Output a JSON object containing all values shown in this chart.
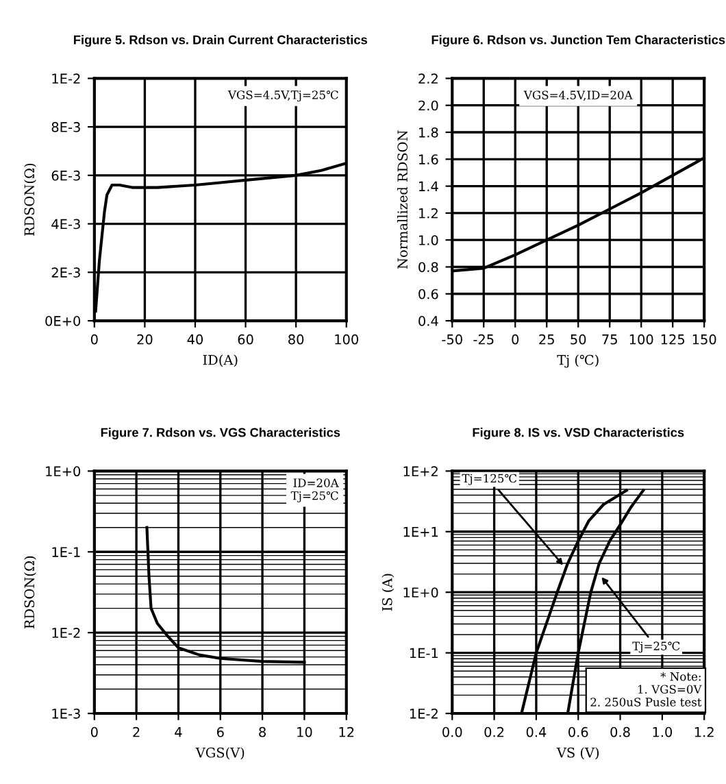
{
  "chart_data": [
    {
      "type": "line",
      "title": "Figure 5. Rdson vs. Drain Current Characteristics",
      "xlabel": "ID(A)",
      "ylabel": "RDSON(Ω)",
      "annotations": [
        "VGS=4.5V,Tj=25℃"
      ],
      "xlim": [
        0,
        100
      ],
      "xticks": [
        0,
        20,
        40,
        60,
        80,
        100
      ],
      "ylim": [
        0,
        0.01
      ],
      "yticks": [
        {
          "value": 0,
          "label": "0E+0"
        },
        {
          "value": 0.002,
          "label": "2E-3"
        },
        {
          "value": 0.004,
          "label": "4E-3"
        },
        {
          "value": 0.006,
          "label": "6E-3"
        },
        {
          "value": 0.008,
          "label": "8E-3"
        },
        {
          "value": 0.01,
          "label": "1E-2"
        }
      ],
      "grid": true,
      "series": [
        {
          "color": "#000000",
          "x": [
            0.5,
            2,
            4,
            5,
            7,
            10,
            15,
            25,
            40,
            50,
            60,
            70,
            80,
            90,
            100
          ],
          "values": [
            0.0004,
            0.0025,
            0.0045,
            0.0052,
            0.0056,
            0.0056,
            0.0055,
            0.0055,
            0.0056,
            0.0057,
            0.0058,
            0.0059,
            0.006,
            0.0062,
            0.0065
          ]
        }
      ]
    },
    {
      "type": "line",
      "title": "Figure 6. Rdson vs. Junction Tem Characteristics",
      "xlabel": "Tj (℃)",
      "ylabel": "Normallized RDSON",
      "annotations": [
        "VGS=4.5V,ID=20A"
      ],
      "xlim": [
        -50,
        150
      ],
      "xticks": [
        -50,
        -25,
        0,
        25,
        50,
        75,
        100,
        125,
        150
      ],
      "ylim": [
        0.4,
        2.2
      ],
      "yticks": [
        {
          "value": 0.4,
          "label": "0.4"
        },
        {
          "value": 0.6,
          "label": "0.6"
        },
        {
          "value": 0.8,
          "label": "0.8"
        },
        {
          "value": 1.0,
          "label": "1.0"
        },
        {
          "value": 1.2,
          "label": "1.2"
        },
        {
          "value": 1.4,
          "label": "1.4"
        },
        {
          "value": 1.6,
          "label": "1.6"
        },
        {
          "value": 1.8,
          "label": "1.8"
        },
        {
          "value": 2.0,
          "label": "2.0"
        },
        {
          "value": 2.2,
          "label": "2.2"
        }
      ],
      "grid": true,
      "series": [
        {
          "color": "#000000",
          "x": [
            -50,
            -25,
            0,
            25,
            50,
            75,
            100,
            125,
            150
          ],
          "values": [
            0.77,
            0.79,
            0.89,
            1.0,
            1.11,
            1.23,
            1.35,
            1.48,
            1.61
          ]
        }
      ]
    },
    {
      "type": "line",
      "title": "Figure 7. Rdson vs. VGS Characteristics",
      "xlabel": "VGS(V)",
      "ylabel": "RDSON(Ω)",
      "annotations": [
        "ID=20A",
        "Tj=25℃"
      ],
      "log": "y",
      "xlim": [
        0,
        12
      ],
      "xticks": [
        0,
        2,
        4,
        6,
        8,
        10,
        12
      ],
      "ylim": [
        0.001,
        1
      ],
      "yticks": [
        {
          "value": 0.001,
          "label": "1E-3"
        },
        {
          "value": 0.01,
          "label": "1E-2"
        },
        {
          "value": 0.1,
          "label": "1E-1"
        },
        {
          "value": 1,
          "label": "1E+0"
        }
      ],
      "grid": true,
      "series": [
        {
          "color": "#000000",
          "x": [
            2.5,
            2.6,
            2.7,
            3,
            3.5,
            4,
            5,
            6,
            8,
            10
          ],
          "values": [
            0.2,
            0.05,
            0.02,
            0.013,
            0.009,
            0.0065,
            0.0053,
            0.0048,
            0.0044,
            0.0043
          ]
        }
      ]
    },
    {
      "type": "line",
      "title": "Figure 8. IS vs. VSD Characteristics",
      "xlabel": "VS (V)",
      "ylabel": "IS (A)",
      "annotations": [
        {
          "text": "Tj=125℃",
          "x": 0.54,
          "y": 2.5
        },
        {
          "text": "Tj=25℃",
          "x": 0.7,
          "y": 2
        },
        "* Note:\n1. VGS=0V\n2. 250uS Pusle test"
      ],
      "log": "y",
      "xlim": [
        0,
        1.2
      ],
      "xticks": [
        {
          "value": 0,
          "label": "0.0"
        },
        {
          "value": 0.2,
          "label": "0.2"
        },
        {
          "value": 0.4,
          "label": "0.4"
        },
        {
          "value": 0.6,
          "label": "0.6"
        },
        {
          "value": 0.8,
          "label": "0.8"
        },
        {
          "value": 1.0,
          "label": "1.0"
        },
        {
          "value": 1.2,
          "label": "1.2"
        }
      ],
      "ylim": [
        0.01,
        100
      ],
      "yticks": [
        {
          "value": 0.01,
          "label": "1E-2"
        },
        {
          "value": 0.1,
          "label": "1E-1"
        },
        {
          "value": 1,
          "label": "1E+0"
        },
        {
          "value": 10,
          "label": "1E+1"
        },
        {
          "value": 100,
          "label": "1E+2"
        }
      ],
      "grid": true,
      "series": [
        {
          "color": "#000000",
          "x": [
            0.33,
            0.4,
            0.47,
            0.5,
            0.55,
            0.6,
            0.65,
            0.72,
            0.83
          ],
          "values": [
            0.01,
            0.1,
            0.5,
            1,
            3,
            7,
            15,
            28,
            48
          ]
        },
        {
          "color": "#000000",
          "x": [
            0.55,
            0.6,
            0.66,
            0.7,
            0.75,
            0.8,
            0.85,
            0.91
          ],
          "values": [
            0.01,
            0.1,
            1,
            3,
            7,
            13,
            25,
            48
          ]
        }
      ]
    }
  ]
}
